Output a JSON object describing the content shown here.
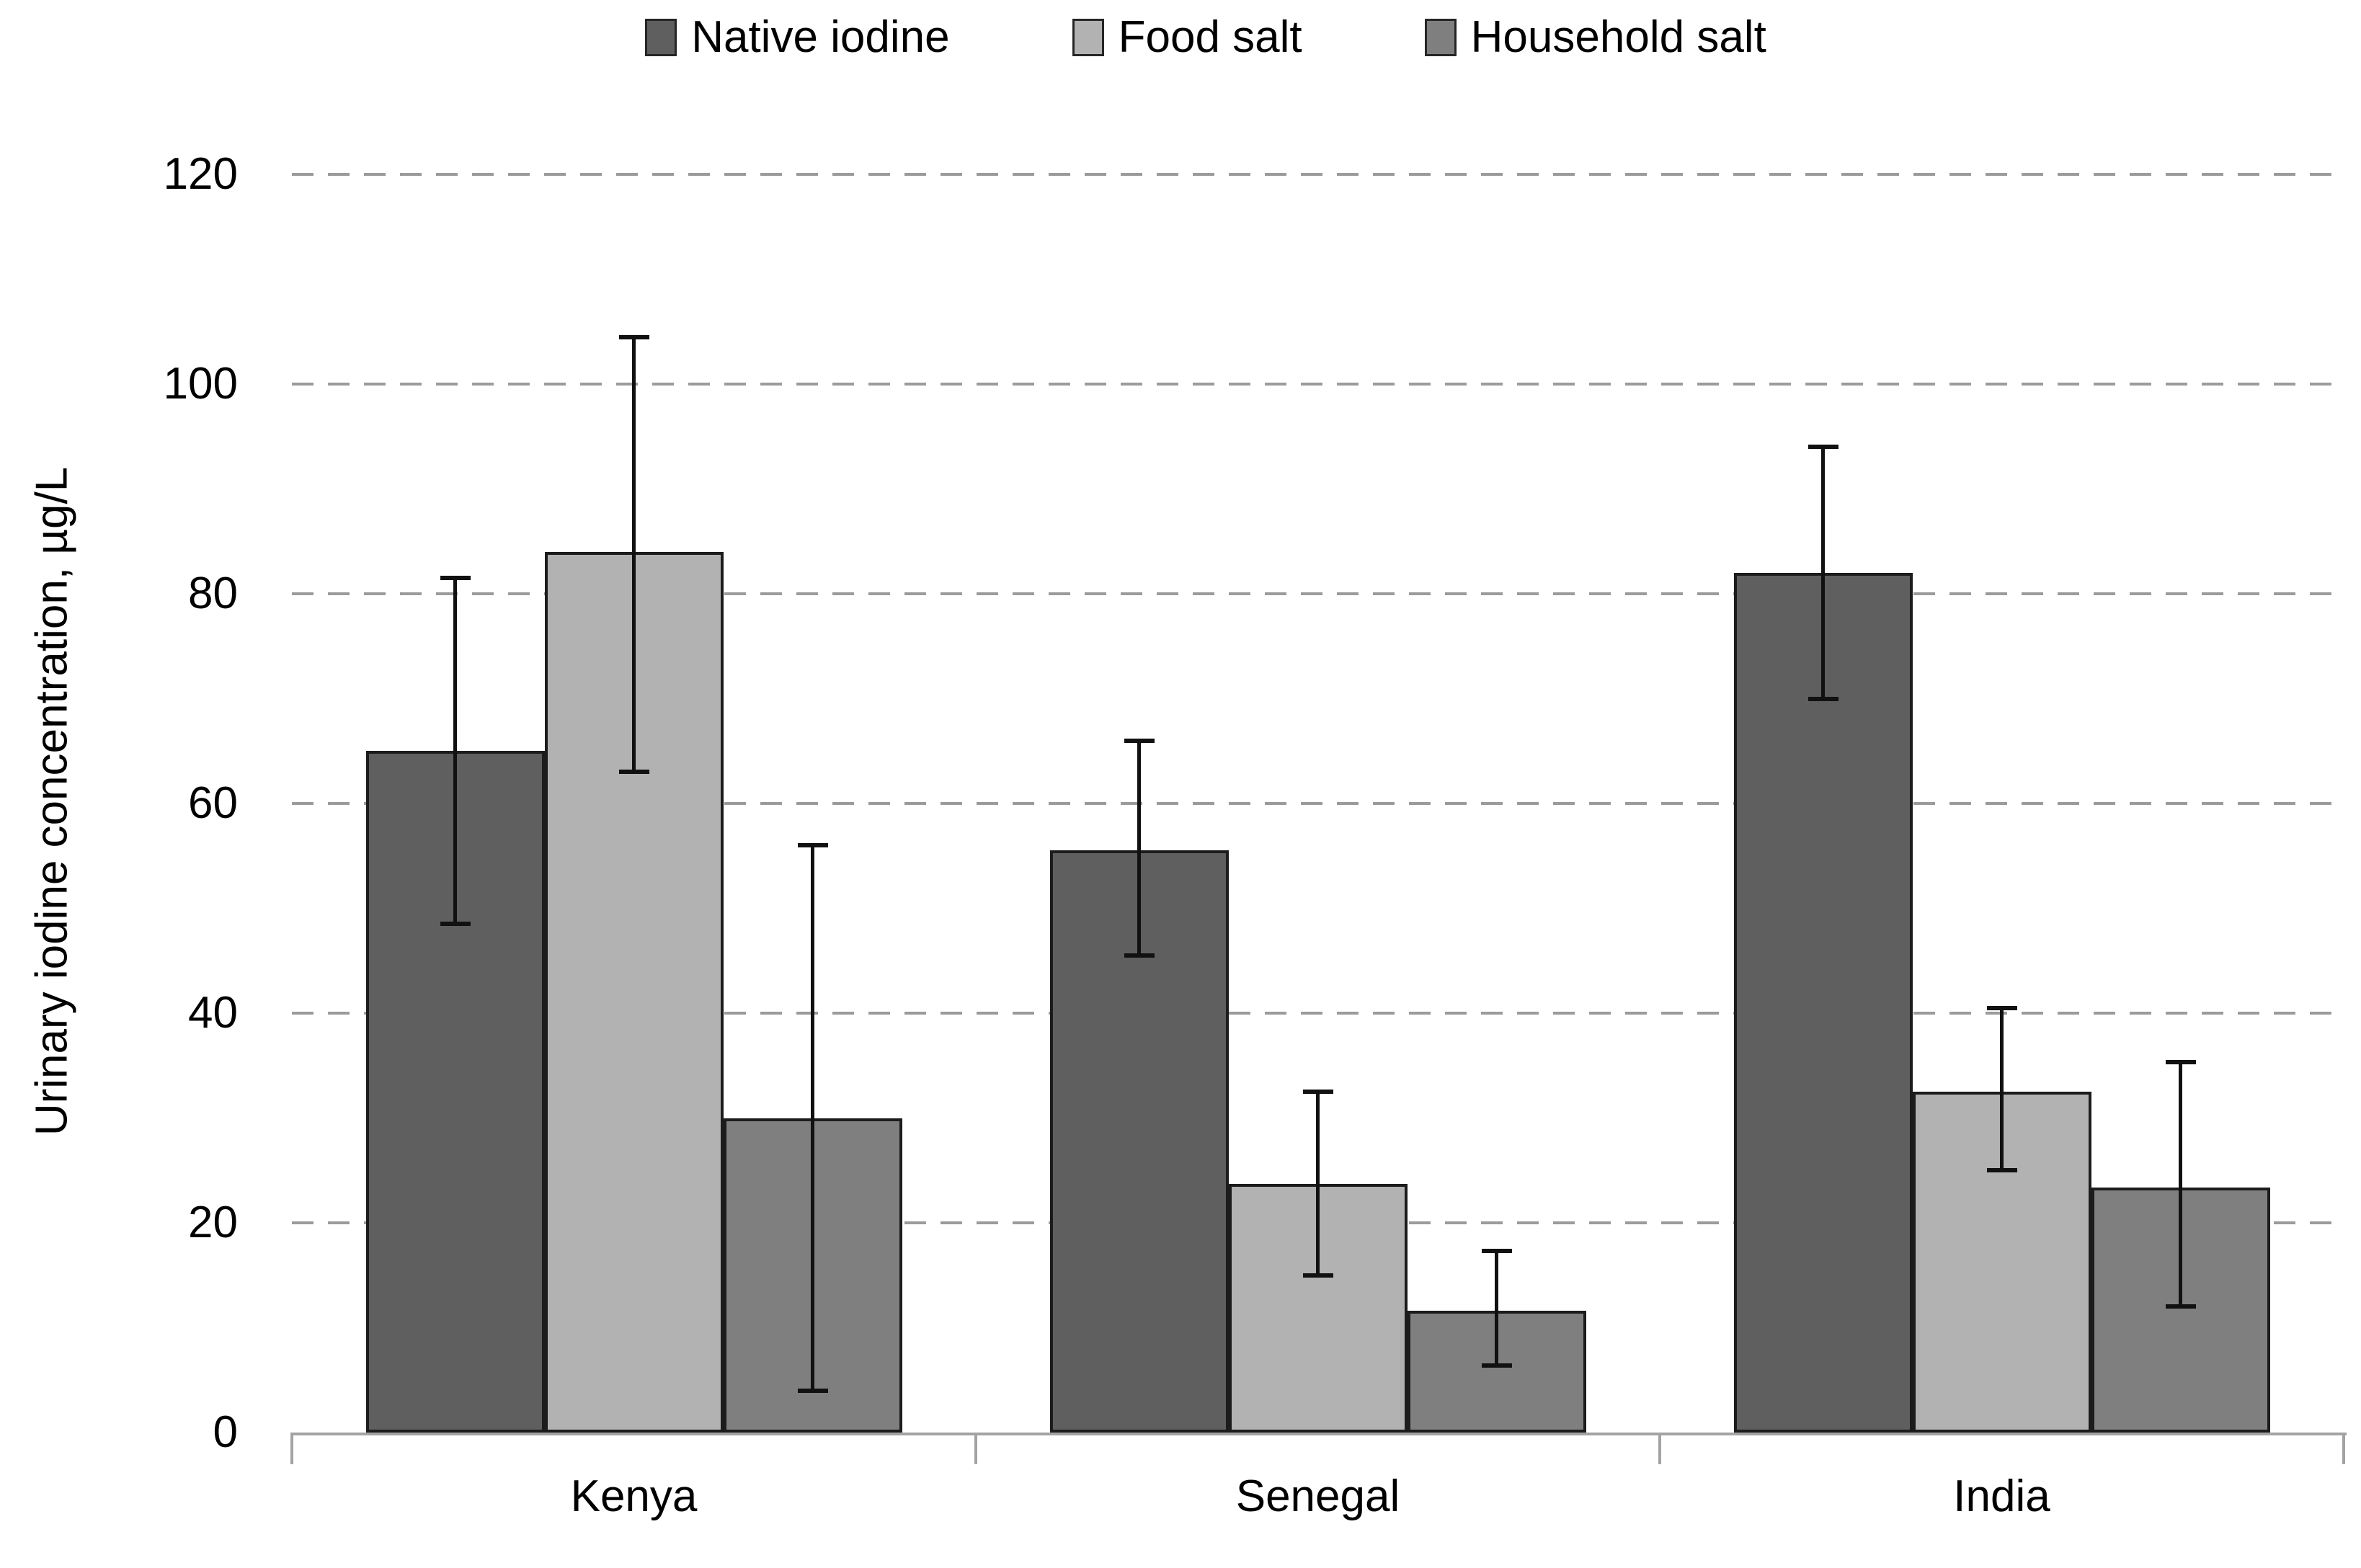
{
  "chart_data": {
    "type": "bar",
    "title": "",
    "categories": [
      "Kenya",
      "Senegal",
      "India"
    ],
    "series": [
      {
        "name": "Native iodine",
        "color": "#5f5f5f",
        "values": [
          65,
          55.5,
          82
        ],
        "err_low": [
          48.5,
          45.5,
          70
        ],
        "err_high": [
          81.5,
          66,
          94
        ]
      },
      {
        "name": "Food salt",
        "color": "#b2b2b2",
        "values": [
          84,
          23.7,
          32.5
        ],
        "err_low": [
          63,
          15,
          25
        ],
        "err_high": [
          104.5,
          32.5,
          40.5
        ]
      },
      {
        "name": "Household salt",
        "color": "#7f7f7f",
        "values": [
          30,
          11.6,
          23.4
        ],
        "err_low": [
          4,
          6.4,
          12
        ],
        "err_high": [
          56,
          17.3,
          35.3
        ]
      }
    ],
    "xlabel": "",
    "ylabel": "Urinary iodine concentration, µg/L",
    "ylim": [
      0,
      120
    ],
    "yticks": [
      0,
      20,
      40,
      60,
      80,
      100,
      120
    ],
    "grid": "horizontal-dashed",
    "legend_position": "top",
    "error_bars": true,
    "colors": {
      "gridline": "#9b9b9b",
      "axis": "#a3a3a3",
      "bar_border": "#1c1c1c",
      "error_bar": "#111111",
      "text": "#000000",
      "background": "#ffffff"
    }
  }
}
